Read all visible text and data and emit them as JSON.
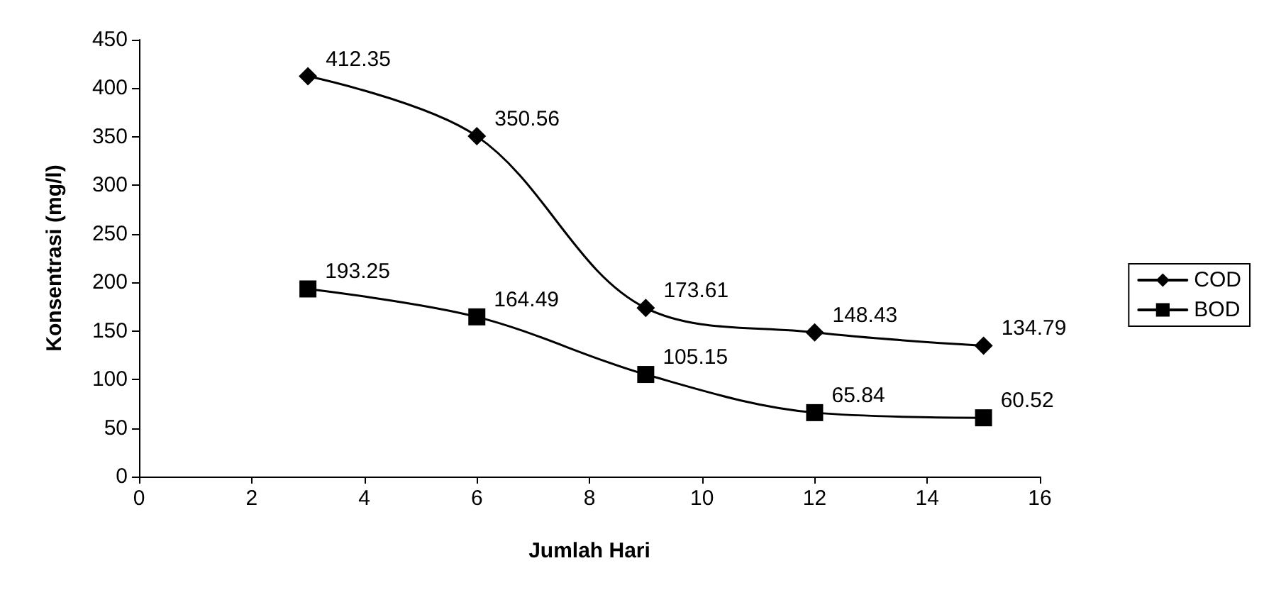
{
  "chart_data": {
    "type": "line",
    "xlabel": "Jumlah Hari",
    "ylabel": "Konsentrasi (mg/l)",
    "x": [
      3,
      6,
      9,
      12,
      15
    ],
    "series": [
      {
        "name": "COD",
        "color": "#000000",
        "marker": "diamond",
        "values": [
          412.35,
          350.56,
          173.61,
          148.43,
          134.79
        ]
      },
      {
        "name": "BOD",
        "color": "#000000",
        "marker": "square",
        "values": [
          193.25,
          164.49,
          105.15,
          65.84,
          60.52
        ]
      }
    ],
    "xlim": [
      0,
      16
    ],
    "xticks": [
      0,
      2,
      4,
      6,
      8,
      10,
      12,
      14,
      16
    ],
    "ylim": [
      0,
      450
    ],
    "yticks": [
      0,
      50,
      100,
      150,
      200,
      250,
      300,
      350,
      400,
      450
    ],
    "data_labels": true,
    "grid": false,
    "legend": "right",
    "line_style": "solid"
  }
}
